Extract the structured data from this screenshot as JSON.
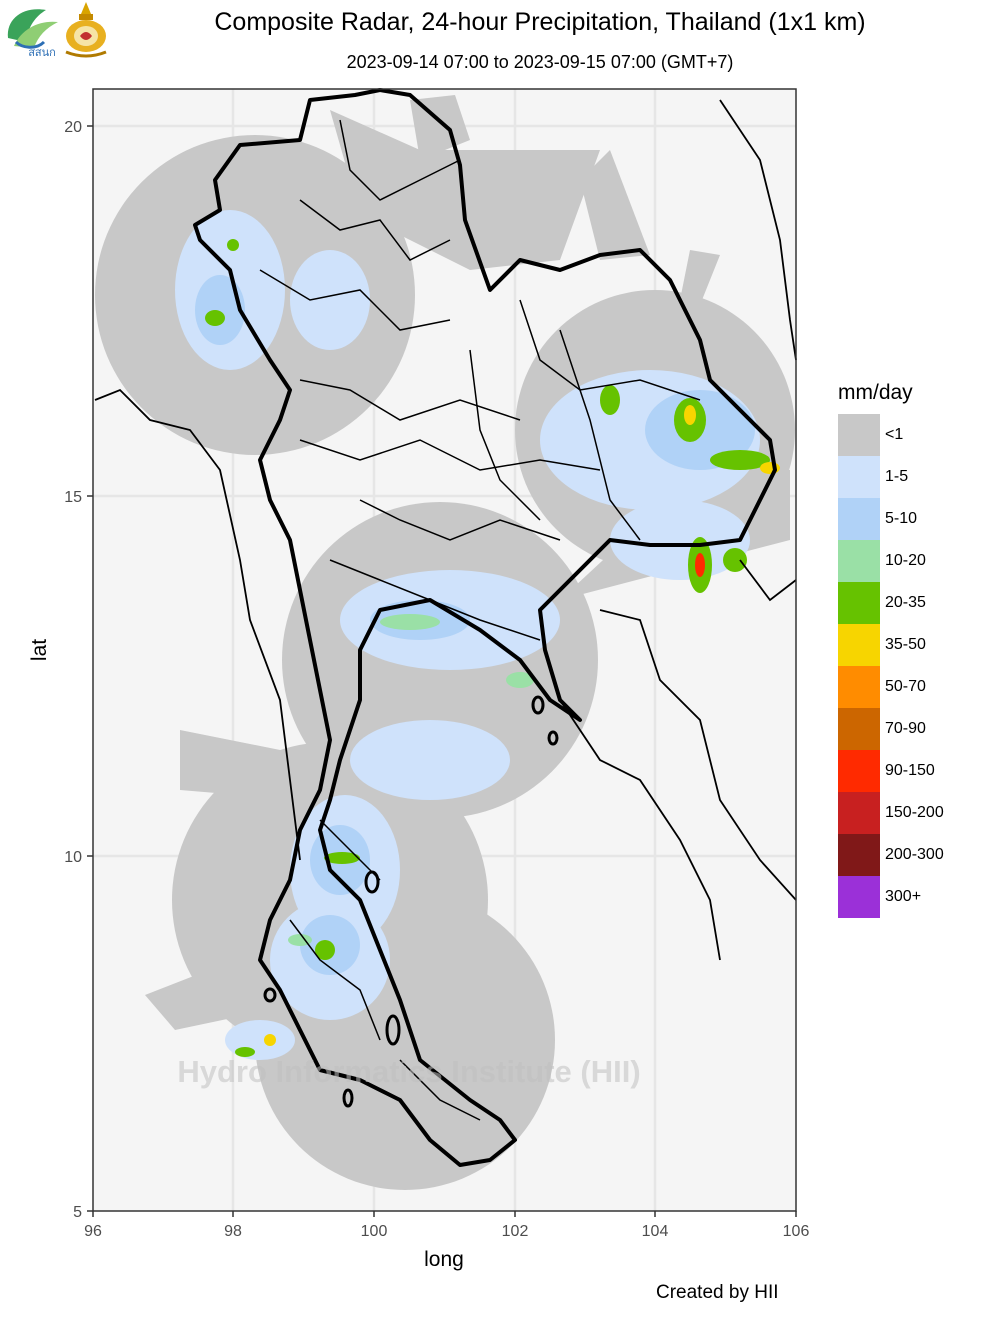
{
  "title": "Composite Radar, 24-hour Precipitation, Thailand (1x1 km)",
  "subtitle": "2023-09-14 07:00 to 2023-09-15 07:00 (GMT+7)",
  "logo_left_text": "สสนก",
  "watermark": "Hydro Informatics Institute (HII)",
  "credit": "Created by HII",
  "axes": {
    "x_label": "long",
    "y_label": "lat",
    "x_ticks": [
      "96",
      "98",
      "100",
      "102",
      "104",
      "106"
    ],
    "y_ticks": [
      "5",
      "10",
      "15",
      "20"
    ],
    "x_range": [
      96,
      106
    ],
    "y_range": [
      5,
      20.5
    ]
  },
  "legend": {
    "title": "mm/day",
    "items": [
      {
        "label": "<1",
        "color": "#c8c8c8"
      },
      {
        "label": "1-5",
        "color": "#cfe2fb"
      },
      {
        "label": "5-10",
        "color": "#b0d2f7"
      },
      {
        "label": "10-20",
        "color": "#9ae0a6"
      },
      {
        "label": "20-35",
        "color": "#66c200"
      },
      {
        "label": "35-50",
        "color": "#f7d500"
      },
      {
        "label": "50-70",
        "color": "#ff8c00"
      },
      {
        "label": "70-90",
        "color": "#cc6600"
      },
      {
        "label": "90-150",
        "color": "#ff2a00"
      },
      {
        "label": "150-200",
        "color": "#c82020"
      },
      {
        "label": "200-300",
        "color": "#801818"
      },
      {
        "label": "300+",
        "color": "#9b30d8"
      }
    ]
  },
  "colors": {
    "panel_background": "#f5f5f5",
    "gridline": "#e6e6e6",
    "radar_no_rain": "#c8c8c8",
    "thailand_fill": "#ffffff",
    "border": "#000000"
  }
}
